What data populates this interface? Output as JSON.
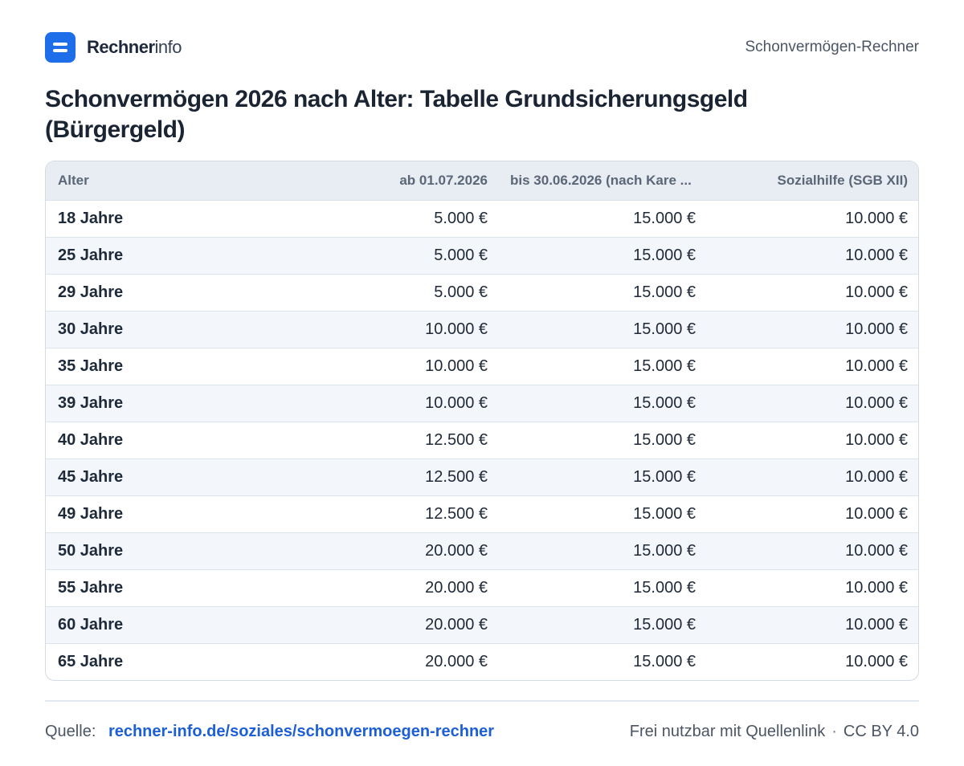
{
  "header": {
    "brand_strong": "Rechner",
    "brand_light": "info",
    "right_label": "Schonvermögen-Rechner"
  },
  "page_title": "Schonvermögen 2026 nach Alter: Tabelle Grundsicherungsgeld (Bürgergeld)",
  "table": {
    "columns": [
      "Alter",
      "ab 01.07.2026",
      "bis 30.06.2026 (nach Kare ...",
      "Sozialhilfe (SGB XII)"
    ],
    "rows": [
      [
        "18 Jahre",
        "5.000 €",
        "15.000 €",
        "10.000 €"
      ],
      [
        "25 Jahre",
        "5.000 €",
        "15.000 €",
        "10.000 €"
      ],
      [
        "29 Jahre",
        "5.000 €",
        "15.000 €",
        "10.000 €"
      ],
      [
        "30 Jahre",
        "10.000 €",
        "15.000 €",
        "10.000 €"
      ],
      [
        "35 Jahre",
        "10.000 €",
        "15.000 €",
        "10.000 €"
      ],
      [
        "39 Jahre",
        "10.000 €",
        "15.000 €",
        "10.000 €"
      ],
      [
        "40 Jahre",
        "12.500 €",
        "15.000 €",
        "10.000 €"
      ],
      [
        "45 Jahre",
        "12.500 €",
        "15.000 €",
        "10.000 €"
      ],
      [
        "49 Jahre",
        "12.500 €",
        "15.000 €",
        "10.000 €"
      ],
      [
        "50 Jahre",
        "20.000 €",
        "15.000 €",
        "10.000 €"
      ],
      [
        "55 Jahre",
        "20.000 €",
        "15.000 €",
        "10.000 €"
      ],
      [
        "60 Jahre",
        "20.000 €",
        "15.000 €",
        "10.000 €"
      ],
      [
        "65 Jahre",
        "20.000 €",
        "15.000 €",
        "10.000 €"
      ]
    ]
  },
  "footer": {
    "source_label": "Quelle:",
    "source_link": "rechner-info.de/soziales/schonvermoegen-rechner",
    "license_text": "Frei nutzbar mit Quellenlink",
    "separator": "·",
    "license": "CC BY 4.0"
  },
  "colors": {
    "brand": "#1d6ee8",
    "link": "#1d5fd6",
    "header_bg": "#e8edf4",
    "row_alt_bg": "#f3f6fa"
  }
}
